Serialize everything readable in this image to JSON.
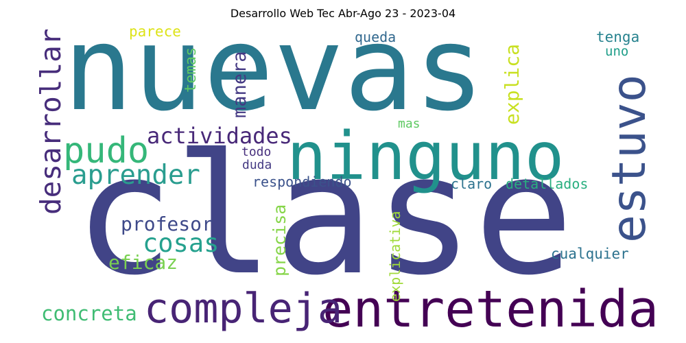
{
  "title": "Desarrollo Web Tec Abr-Ago 23 - 2023-04",
  "words": [
    {
      "text": "clase",
      "color": "#414487"
    },
    {
      "text": "nuevas",
      "color": "#2a788e"
    },
    {
      "text": "ninguno",
      "color": "#21918c"
    },
    {
      "text": "entretenida",
      "color": "#440154"
    },
    {
      "text": "compleja",
      "color": "#482475"
    },
    {
      "text": "estuvo",
      "color": "#3b528b"
    },
    {
      "text": "pudo",
      "color": "#35b779"
    },
    {
      "text": "aprender",
      "color": "#2a9d8f"
    },
    {
      "text": "desarrollar",
      "color": "#472d7b"
    },
    {
      "text": "actividades",
      "color": "#482878"
    },
    {
      "text": "cosas",
      "color": "#25a18e"
    },
    {
      "text": "profesor",
      "color": "#3e4989"
    },
    {
      "text": "eficaz",
      "color": "#7ad151"
    },
    {
      "text": "concreta",
      "color": "#3fbc73"
    },
    {
      "text": "manera",
      "color": "#443983"
    },
    {
      "text": "temas",
      "color": "#5ec962"
    },
    {
      "text": "parece",
      "color": "#dde318"
    },
    {
      "text": "queda",
      "color": "#31688e"
    },
    {
      "text": "explica",
      "color": "#c8e020"
    },
    {
      "text": "tenga",
      "color": "#26828e"
    },
    {
      "text": "uno",
      "color": "#1f9e89"
    },
    {
      "text": "mas",
      "color": "#5ec962"
    },
    {
      "text": "todo",
      "color": "#472f7d"
    },
    {
      "text": "duda",
      "color": "#443a83"
    },
    {
      "text": "respondiendo",
      "color": "#3b528b"
    },
    {
      "text": "claro",
      "color": "#2c728e"
    },
    {
      "text": "detallados",
      "color": "#29af7f"
    },
    {
      "text": "precisa",
      "color": "#86d549"
    },
    {
      "text": "explicativa",
      "color": "#a0da39"
    },
    {
      "text": "cualquier",
      "color": "#2c728e"
    }
  ]
}
